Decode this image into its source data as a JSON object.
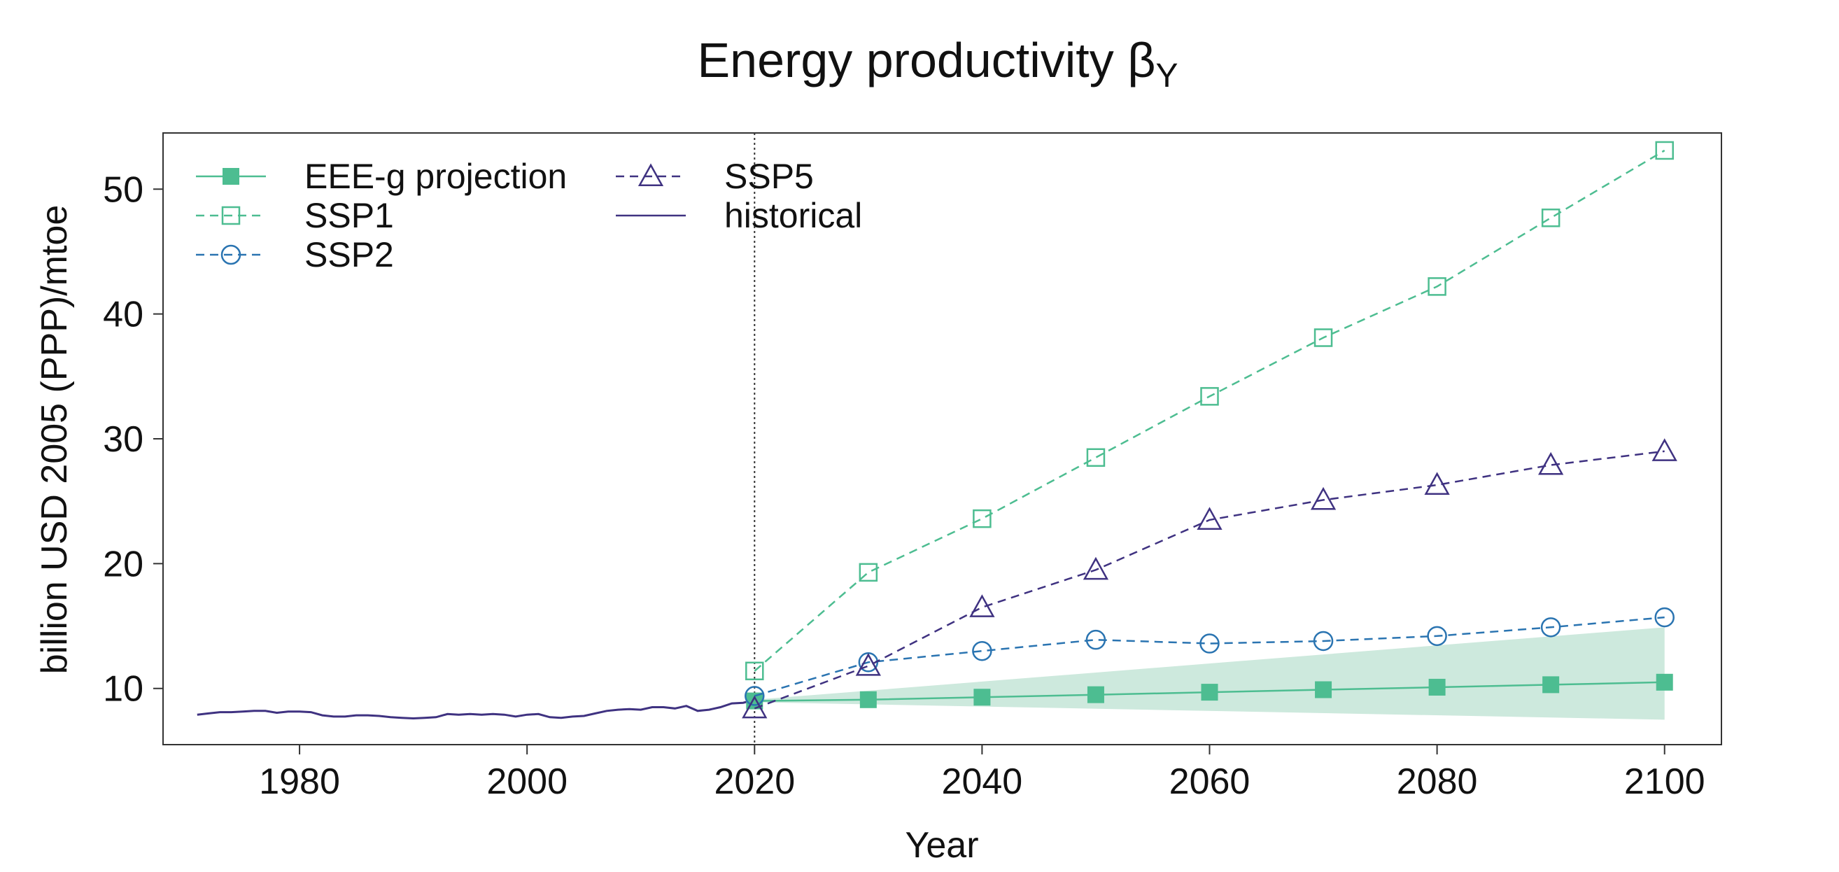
{
  "chart_data": {
    "type": "line",
    "title": "Energy productivity β",
    "title_subscript": "Y",
    "xlabel": "Year",
    "ylabel": "billion USD 2005 (PPP)/mtoe",
    "xlim": [
      1968,
      2105
    ],
    "ylim": [
      5.5,
      54.5
    ],
    "x_ticks": [
      1980,
      2000,
      2020,
      2040,
      2060,
      2080,
      2100
    ],
    "y_ticks": [
      10,
      20,
      30,
      40,
      50
    ],
    "vline_x": 2020,
    "colors": {
      "green": "#4dbd91",
      "green_band": "#cde9dd",
      "blue": "#2a74b1",
      "purple": "#3f3281",
      "axis": "#333333"
    },
    "series": [
      {
        "name": "EEE-g projection",
        "marker": "filled-square",
        "line": "solid",
        "color": "#4dbd91",
        "x": [
          2020,
          2030,
          2040,
          2050,
          2060,
          2070,
          2080,
          2090,
          2100
        ],
        "values": [
          9.0,
          9.1,
          9.3,
          9.5,
          9.7,
          9.9,
          10.1,
          10.3,
          10.5
        ]
      },
      {
        "name": "SSP1",
        "marker": "open-square",
        "line": "dashed",
        "color": "#4dbd91",
        "x": [
          2020,
          2030,
          2040,
          2050,
          2060,
          2070,
          2080,
          2090,
          2100
        ],
        "values": [
          11.4,
          19.3,
          23.6,
          28.5,
          33.4,
          38.1,
          42.2,
          47.7,
          53.1
        ]
      },
      {
        "name": "SSP2",
        "marker": "open-circle",
        "line": "dashed",
        "color": "#2a74b1",
        "x": [
          2020,
          2030,
          2040,
          2050,
          2060,
          2070,
          2080,
          2090,
          2100
        ],
        "values": [
          9.4,
          12.1,
          13.0,
          13.9,
          13.6,
          13.8,
          14.2,
          14.9,
          15.7
        ]
      },
      {
        "name": "SSP5",
        "marker": "open-triangle",
        "line": "dashed",
        "color": "#3f3281",
        "x": [
          2020,
          2030,
          2040,
          2050,
          2060,
          2070,
          2080,
          2090,
          2100
        ],
        "values": [
          8.4,
          11.8,
          16.5,
          19.5,
          23.5,
          25.1,
          26.3,
          27.9,
          29.0
        ]
      },
      {
        "name": "historical",
        "marker": "none",
        "line": "solid",
        "color": "#3f3281",
        "x": [
          1971,
          1972,
          1973,
          1974,
          1975,
          1976,
          1977,
          1978,
          1979,
          1980,
          1981,
          1982,
          1983,
          1984,
          1985,
          1986,
          1987,
          1988,
          1989,
          1990,
          1991,
          1992,
          1993,
          1994,
          1995,
          1996,
          1997,
          1998,
          1999,
          2000,
          2001,
          2002,
          2003,
          2004,
          2005,
          2006,
          2007,
          2008,
          2009,
          2010,
          2011,
          2012,
          2013,
          2014,
          2015,
          2016,
          2017,
          2018,
          2019,
          2020
        ],
        "values": [
          7.9,
          8.0,
          8.1,
          8.1,
          8.15,
          8.2,
          8.2,
          8.05,
          8.15,
          8.15,
          8.1,
          7.85,
          7.75,
          7.75,
          7.85,
          7.85,
          7.8,
          7.7,
          7.65,
          7.6,
          7.65,
          7.7,
          7.95,
          7.9,
          7.95,
          7.9,
          7.95,
          7.9,
          7.75,
          7.9,
          7.95,
          7.7,
          7.65,
          7.75,
          7.8,
          8.0,
          8.2,
          8.3,
          8.35,
          8.3,
          8.5,
          8.5,
          8.4,
          8.6,
          8.2,
          8.3,
          8.5,
          8.8,
          8.85,
          9.1
        ]
      }
    ],
    "band": {
      "name": "EEE-g projection uncertainty",
      "x": [
        2020,
        2100
      ],
      "lower": [
        8.9,
        7.5
      ],
      "upper": [
        9.1,
        14.9
      ]
    },
    "legend": {
      "placement": "top-left",
      "columns": [
        [
          "EEE-g projection",
          "SSP1",
          "SSP2"
        ],
        [
          "SSP5",
          "historical"
        ]
      ]
    }
  }
}
